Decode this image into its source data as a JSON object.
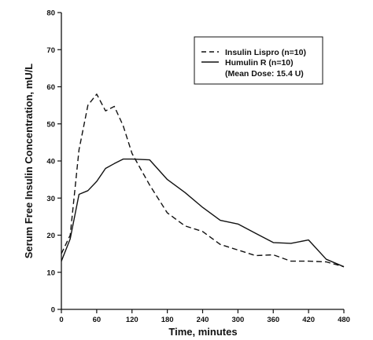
{
  "chart_data": {
    "type": "line",
    "title": "",
    "xlabel": "Time, minutes",
    "ylabel": "Serum Free Insulin Concentration, mU/L",
    "xlim": [
      0,
      480
    ],
    "ylim": [
      0,
      80
    ],
    "xticks": [
      0,
      60,
      120,
      180,
      240,
      300,
      360,
      420,
      480
    ],
    "yticks": [
      0,
      10,
      20,
      30,
      40,
      50,
      60,
      70,
      80
    ],
    "grid": false,
    "legend_position": "top-right",
    "legend": [
      "Insulin Lispro (n=10)",
      "Humulin R (n=10)",
      "(Mean Dose: 15.4 U)"
    ],
    "series": [
      {
        "name": "Insulin Lispro (n=10)",
        "style": "dashed",
        "x": [
          0,
          15,
          30,
          45,
          60,
          75,
          90,
          105,
          120,
          150,
          180,
          210,
          240,
          270,
          300,
          330,
          360,
          390,
          420,
          450,
          480
        ],
        "y": [
          15,
          20,
          43,
          55,
          58,
          53.5,
          54.7,
          49.5,
          42,
          33.5,
          26,
          22.5,
          21,
          17.5,
          16,
          14.5,
          14.7,
          13,
          13,
          12.8,
          11.5
        ]
      },
      {
        "name": "Humulin R (n=10)",
        "style": "solid",
        "x": [
          0,
          15,
          30,
          45,
          60,
          75,
          90,
          105,
          120,
          150,
          180,
          210,
          240,
          270,
          300,
          330,
          360,
          390,
          420,
          450,
          480
        ],
        "y": [
          13,
          19,
          31,
          32,
          34.5,
          38,
          39.3,
          40.5,
          40.5,
          40.3,
          35,
          31.5,
          27.5,
          24,
          23,
          20.5,
          18,
          17.8,
          18.7,
          13.5,
          11.5
        ]
      }
    ]
  }
}
